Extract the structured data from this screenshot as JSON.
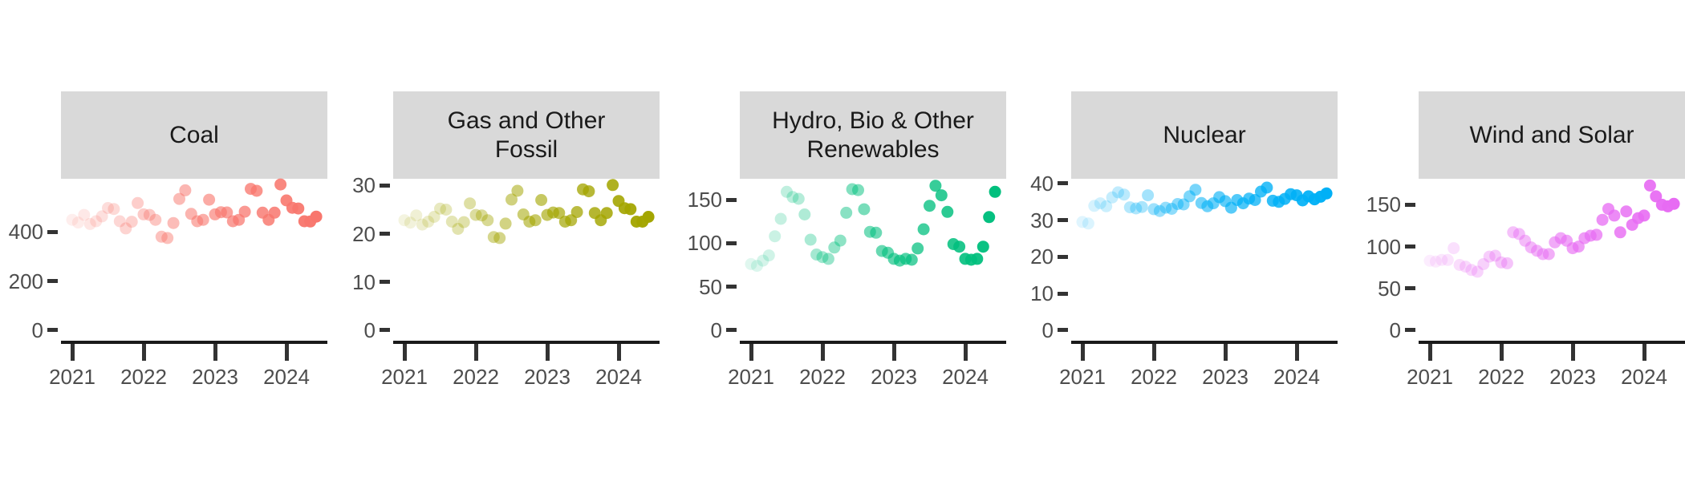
{
  "chart_data": {
    "type": "scatter",
    "title": "",
    "xlabel": "",
    "ylabel": "",
    "grid": false,
    "legend": "none",
    "point_encoding": "one point per month; opacity increases with date (oldest faint, newest opaque)",
    "alpha_range": [
      0.12,
      1.0
    ],
    "x_tick_labels": [
      "2021",
      "2022",
      "2023",
      "2024"
    ],
    "x_months": [
      "2021-01",
      "2021-02",
      "2021-03",
      "2021-04",
      "2021-05",
      "2021-06",
      "2021-07",
      "2021-08",
      "2021-09",
      "2021-10",
      "2021-11",
      "2021-12",
      "2022-01",
      "2022-02",
      "2022-03",
      "2022-04",
      "2022-05",
      "2022-06",
      "2022-07",
      "2022-08",
      "2022-09",
      "2022-10",
      "2022-11",
      "2022-12",
      "2023-01",
      "2023-02",
      "2023-03",
      "2023-04",
      "2023-05",
      "2023-06",
      "2023-07",
      "2023-08",
      "2023-09",
      "2023-10",
      "2023-11",
      "2023-12",
      "2024-01",
      "2024-02",
      "2024-03",
      "2024-04",
      "2024-05",
      "2024-06"
    ],
    "facets": [
      {
        "title_lines": [
          "Coal"
        ],
        "color": "#F8766D",
        "y_ticks": [
          0,
          200,
          400
        ],
        "ylim": [
          -43,
          616
        ],
        "values": [
          449,
          438,
          469,
          432,
          443,
          463,
          497,
          493,
          443,
          414,
          441,
          517,
          471,
          469,
          449,
          380,
          375,
          436,
          534,
          569,
          473,
          443,
          449,
          531,
          471,
          480,
          479,
          443,
          449,
          482,
          575,
          567,
          478,
          449,
          478,
          593,
          528,
          498,
          495,
          443,
          442,
          462
        ]
      },
      {
        "title_lines": [
          "Gas and Other",
          "Fossil"
        ],
        "color": "#A3A500",
        "y_ticks": [
          0,
          10,
          20,
          30
        ],
        "ylim": [
          -2.2,
          31.4
        ],
        "values": [
          22.8,
          22.3,
          23.8,
          21.9,
          22.5,
          23.5,
          25.2,
          25.0,
          22.5,
          21.0,
          22.4,
          26.3,
          23.9,
          23.8,
          22.8,
          19.3,
          19.1,
          22.1,
          27.1,
          28.9,
          24.0,
          22.5,
          22.8,
          27.0,
          23.9,
          24.4,
          24.3,
          22.5,
          22.8,
          24.5,
          29.2,
          28.8,
          24.3,
          22.8,
          24.3,
          30.1,
          26.8,
          25.3,
          25.1,
          22.5,
          22.5,
          23.5
        ]
      },
      {
        "title_lines": [
          "Hydro, Bio & Other",
          "Renewables"
        ],
        "color": "#00BF7D",
        "y_ticks": [
          0,
          50,
          100,
          150
        ],
        "ylim": [
          -12,
          174
        ],
        "values": [
          76,
          74,
          80,
          86,
          108,
          128,
          159,
          153,
          151,
          133,
          104,
          87,
          84,
          82,
          95,
          103,
          135,
          162,
          161,
          139,
          113,
          112,
          91,
          89,
          82,
          80,
          82,
          81,
          94,
          116,
          143,
          166,
          155,
          136,
          99,
          96,
          82,
          81,
          82,
          96,
          130,
          159
        ]
      },
      {
        "title_lines": [
          "Nuclear"
        ],
        "color": "#00B0F6",
        "y_ticks": [
          0,
          10,
          20,
          30,
          40
        ],
        "ylim": [
          -2.9,
          41.3
        ],
        "values": [
          29.5,
          29.1,
          33.9,
          34.6,
          33.8,
          36.2,
          37.6,
          37.0,
          33.5,
          33.2,
          33.6,
          36.8,
          33.0,
          32.5,
          33.4,
          33.1,
          34.4,
          34.3,
          36.5,
          38.3,
          34.7,
          33.8,
          34.6,
          36.3,
          35.2,
          33.4,
          35.5,
          34.6,
          35.9,
          35.5,
          37.8,
          38.9,
          35.3,
          35.0,
          35.8,
          37.1,
          36.8,
          35.4,
          36.5,
          35.7,
          36.4,
          37.3
        ]
      },
      {
        "title_lines": [
          "Wind and Solar"
        ],
        "color": "#E76BF3",
        "y_ticks": [
          0,
          50,
          100,
          150
        ],
        "ylim": [
          -12.5,
          181
        ],
        "values": [
          83,
          82,
          84,
          84,
          98,
          78,
          76,
          72,
          70,
          79,
          88,
          89,
          81,
          80,
          117,
          115,
          107,
          99,
          95,
          91,
          91,
          105,
          110,
          107,
          98,
          100,
          110,
          113,
          114,
          132,
          145,
          137,
          117,
          142,
          126,
          134,
          137,
          173,
          160,
          150,
          148,
          151
        ]
      }
    ],
    "colors": {
      "strip_bg": "#D9D9D9",
      "strip_text": "#1a1a1a",
      "axis_text": "#4d4d4d",
      "axis_line": "#1a1a1a",
      "tick_mark": "#333333",
      "panel_bg": "#ffffff"
    }
  }
}
